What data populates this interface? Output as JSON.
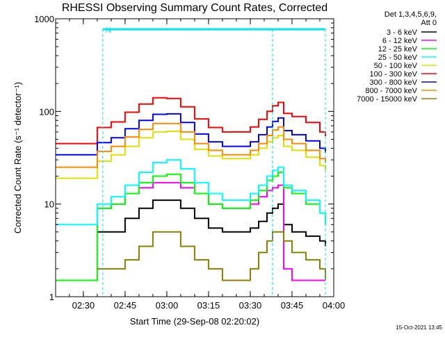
{
  "chart_data": {
    "type": "line",
    "title": "RHESSI Observing Summary Count Rates, Corrected",
    "xlabel": "Start Time (29-Sep-08 02:20:02)",
    "ylabel": "Corrected Count Rate (s⁻¹ detector⁻¹)",
    "y_scale": "log",
    "ylim": [
      1,
      1000
    ],
    "xlim": [
      "02:20:02",
      "04:00:00"
    ],
    "x_ticks": [
      "02:30",
      "02:45",
      "03:00",
      "03:15",
      "03:30",
      "03:45",
      "04:00"
    ],
    "y_ticks": [
      "1",
      "10",
      "100",
      "1000"
    ],
    "legend_header": [
      "Det 1,3,4,5,6,9,",
      "Att 0"
    ],
    "legend_position": "top-right, outside plot",
    "footer": "15-Oct-2021 13:45",
    "markers": [
      {
        "label": "N",
        "start": "02:37",
        "end": "03:38",
        "level": 770,
        "color": "#00e5ee"
      },
      {
        "label": "",
        "start": "03:38",
        "end": "03:57",
        "level": 770,
        "color": "#00e5ee"
      }
    ],
    "series": [
      {
        "name": "3 - 6 keV",
        "color": "#000000",
        "x": [
          "02:20",
          "02:31",
          "02:35",
          "02:40",
          "02:45",
          "02:50",
          "02:55",
          "03:00",
          "03:05",
          "03:10",
          "03:15",
          "03:20",
          "03:25",
          "03:30",
          "03:33",
          "03:36",
          "03:38",
          "03:40",
          "03:42",
          "03:45",
          "03:50",
          "03:55",
          "03:57"
        ],
        "y": [
          null,
          null,
          5,
          5,
          7,
          9,
          11,
          11,
          9,
          7,
          5.5,
          5,
          5,
          5.5,
          6.5,
          8,
          9,
          10,
          6,
          5,
          4.5,
          4,
          3.5
        ]
      },
      {
        "name": "6 - 12 keV",
        "color": "#ff00ff",
        "x": [
          "02:20",
          "02:31",
          "02:35",
          "02:40",
          "02:45",
          "02:50",
          "02:55",
          "03:00",
          "03:05",
          "03:10",
          "03:15",
          "03:20",
          "03:25",
          "03:30",
          "03:33",
          "03:36",
          "03:38",
          "03:40",
          "03:42",
          "03:45",
          "03:50",
          "03:55",
          "03:57"
        ],
        "y": [
          null,
          null,
          9,
          10,
          13,
          15,
          17,
          17,
          15,
          13,
          10,
          9,
          9,
          10,
          12,
          14,
          15,
          16,
          2,
          1.5,
          1.5,
          1.5,
          1.5
        ]
      },
      {
        "name": "12 - 25 keV",
        "color": "#00ff00",
        "x": [
          "02:20",
          "02:31",
          "02:35",
          "02:40",
          "02:45",
          "02:50",
          "02:55",
          "03:00",
          "03:05",
          "03:10",
          "03:15",
          "03:20",
          "03:25",
          "03:30",
          "03:33",
          "03:36",
          "03:38",
          "03:40",
          "03:42",
          "03:45",
          "03:50",
          "03:55",
          "03:57"
        ],
        "y": [
          1.5,
          1.5,
          9,
          10,
          13,
          17,
          20,
          21,
          17,
          13,
          10,
          9,
          9,
          11,
          14,
          18,
          20,
          22,
          15,
          13,
          10,
          8,
          7
        ]
      },
      {
        "name": "25 - 50 keV",
        "color": "#00ffff",
        "x": [
          "02:20",
          "02:31",
          "02:35",
          "02:40",
          "02:45",
          "02:50",
          "02:55",
          "03:00",
          "03:05",
          "03:10",
          "03:15",
          "03:20",
          "03:25",
          "03:30",
          "03:33",
          "03:36",
          "03:38",
          "03:40",
          "03:42",
          "03:45",
          "03:50",
          "03:55",
          "03:57"
        ],
        "y": [
          6,
          6,
          10,
          12,
          16,
          22,
          28,
          30,
          24,
          17,
          13,
          11,
          11,
          13,
          16,
          20,
          23,
          25,
          16,
          14,
          11,
          8,
          6
        ]
      },
      {
        "name": "50 - 100 keV",
        "color": "#e0e000",
        "x": [
          "02:20",
          "02:31",
          "02:35",
          "02:40",
          "02:45",
          "02:50",
          "02:55",
          "03:00",
          "03:05",
          "03:10",
          "03:15",
          "03:20",
          "03:25",
          "03:30",
          "03:33",
          "03:36",
          "03:38",
          "03:40",
          "03:42",
          "03:45",
          "03:50",
          "03:55",
          "03:57"
        ],
        "y": [
          19,
          19,
          29,
          34,
          42,
          52,
          60,
          61,
          50,
          39,
          33,
          31,
          31,
          34,
          40,
          47,
          52,
          55,
          42,
          38,
          32,
          26,
          23
        ]
      },
      {
        "name": "100 - 300 keV",
        "color": "#ff0000",
        "x": [
          "02:20",
          "02:31",
          "02:35",
          "02:40",
          "02:45",
          "02:50",
          "02:55",
          "03:00",
          "03:05",
          "03:10",
          "03:15",
          "03:20",
          "03:25",
          "03:30",
          "03:33",
          "03:36",
          "03:38",
          "03:40",
          "03:42",
          "03:45",
          "03:50",
          "03:55",
          "03:57"
        ],
        "y": [
          45,
          45,
          67,
          77,
          98,
          120,
          140,
          138,
          112,
          83,
          67,
          60,
          60,
          68,
          82,
          100,
          115,
          125,
          95,
          88,
          76,
          60,
          54
        ]
      },
      {
        "name": "300 - 800 keV",
        "color": "#0000ff",
        "x": [
          "02:20",
          "02:31",
          "02:35",
          "02:40",
          "02:45",
          "02:50",
          "02:55",
          "03:00",
          "03:05",
          "03:10",
          "03:15",
          "03:20",
          "03:25",
          "03:30",
          "03:33",
          "03:36",
          "03:38",
          "03:40",
          "03:42",
          "03:45",
          "03:50",
          "03:55",
          "03:57"
        ],
        "y": [
          34,
          34,
          46,
          52,
          65,
          80,
          93,
          94,
          76,
          57,
          47,
          42,
          42,
          47,
          56,
          68,
          78,
          85,
          62,
          56,
          48,
          40,
          36
        ]
      },
      {
        "name": "800 - 7000 keV",
        "color": "#ff8800",
        "x": [
          "02:20",
          "02:31",
          "02:35",
          "02:40",
          "02:45",
          "02:50",
          "02:55",
          "03:00",
          "03:05",
          "03:10",
          "03:15",
          "03:20",
          "03:25",
          "03:30",
          "03:33",
          "03:36",
          "03:38",
          "03:40",
          "03:42",
          "03:45",
          "03:50",
          "03:55",
          "03:57"
        ],
        "y": [
          25,
          25,
          37,
          42,
          53,
          64,
          74,
          74,
          60,
          45,
          38,
          34,
          34,
          38,
          45,
          55,
          63,
          68,
          50,
          45,
          38,
          31,
          28
        ]
      },
      {
        "name": "7000 - 15000 keV",
        "color": "#8b7d00",
        "x": [
          "02:20",
          "02:31",
          "02:35",
          "02:40",
          "02:45",
          "02:50",
          "02:55",
          "03:00",
          "03:05",
          "03:10",
          "03:15",
          "03:20",
          "03:25",
          "03:30",
          "03:33",
          "03:36",
          "03:38",
          "03:40",
          "03:42",
          "03:45",
          "03:50",
          "03:55",
          "03:57"
        ],
        "y": [
          null,
          null,
          2,
          2,
          2.5,
          3.5,
          5,
          5,
          3.5,
          2.5,
          2,
          1.5,
          1.5,
          2,
          3,
          4,
          5,
          5,
          4,
          3,
          2.5,
          2,
          1.5
        ]
      }
    ]
  }
}
